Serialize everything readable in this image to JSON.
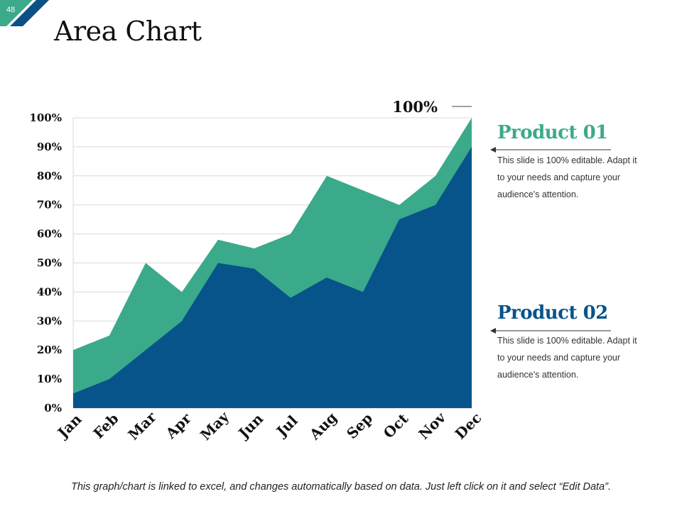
{
  "slide": {
    "number": "48",
    "title": "Area Chart",
    "footer_note": "This graph/chart is linked to excel, and changes automatically based on data. Just left click on it and select “Edit Data”."
  },
  "colors": {
    "product01": "#3aaa8a",
    "product02": "#06548a",
    "badge_teal": "#3aaa8a",
    "badge_navy": "#0b4f86"
  },
  "legend": {
    "product01": {
      "title": "Product 01",
      "description": "This slide is 100% editable. Adapt it to your needs and capture your audience's attention."
    },
    "product02": {
      "title": "Product 02",
      "description": "This slide is 100% editable. Adapt it to your needs and capture your audience's attention."
    }
  },
  "chart_data": {
    "type": "area",
    "title": "",
    "xlabel": "",
    "ylabel": "",
    "ylim": [
      0,
      100
    ],
    "y_ticks": [
      "0%",
      "10%",
      "20%",
      "30%",
      "40%",
      "50%",
      "60%",
      "70%",
      "80%",
      "90%",
      "100%"
    ],
    "categories": [
      "Jan",
      "Feb",
      "Mar",
      "Apr",
      "May",
      "Jun",
      "Jul",
      "Aug",
      "Sep",
      "Oct",
      "Nov",
      "Dec"
    ],
    "series": [
      {
        "name": "Product 01",
        "values": [
          20,
          25,
          50,
          40,
          58,
          55,
          60,
          80,
          75,
          70,
          80,
          100
        ]
      },
      {
        "name": "Product 02",
        "values": [
          5,
          10,
          20,
          30,
          50,
          48,
          38,
          45,
          40,
          65,
          70,
          90
        ]
      }
    ],
    "annotations": [
      {
        "text": "100%",
        "category": "Dec",
        "value": 100
      }
    ],
    "grid": true,
    "legend_position": "right"
  }
}
